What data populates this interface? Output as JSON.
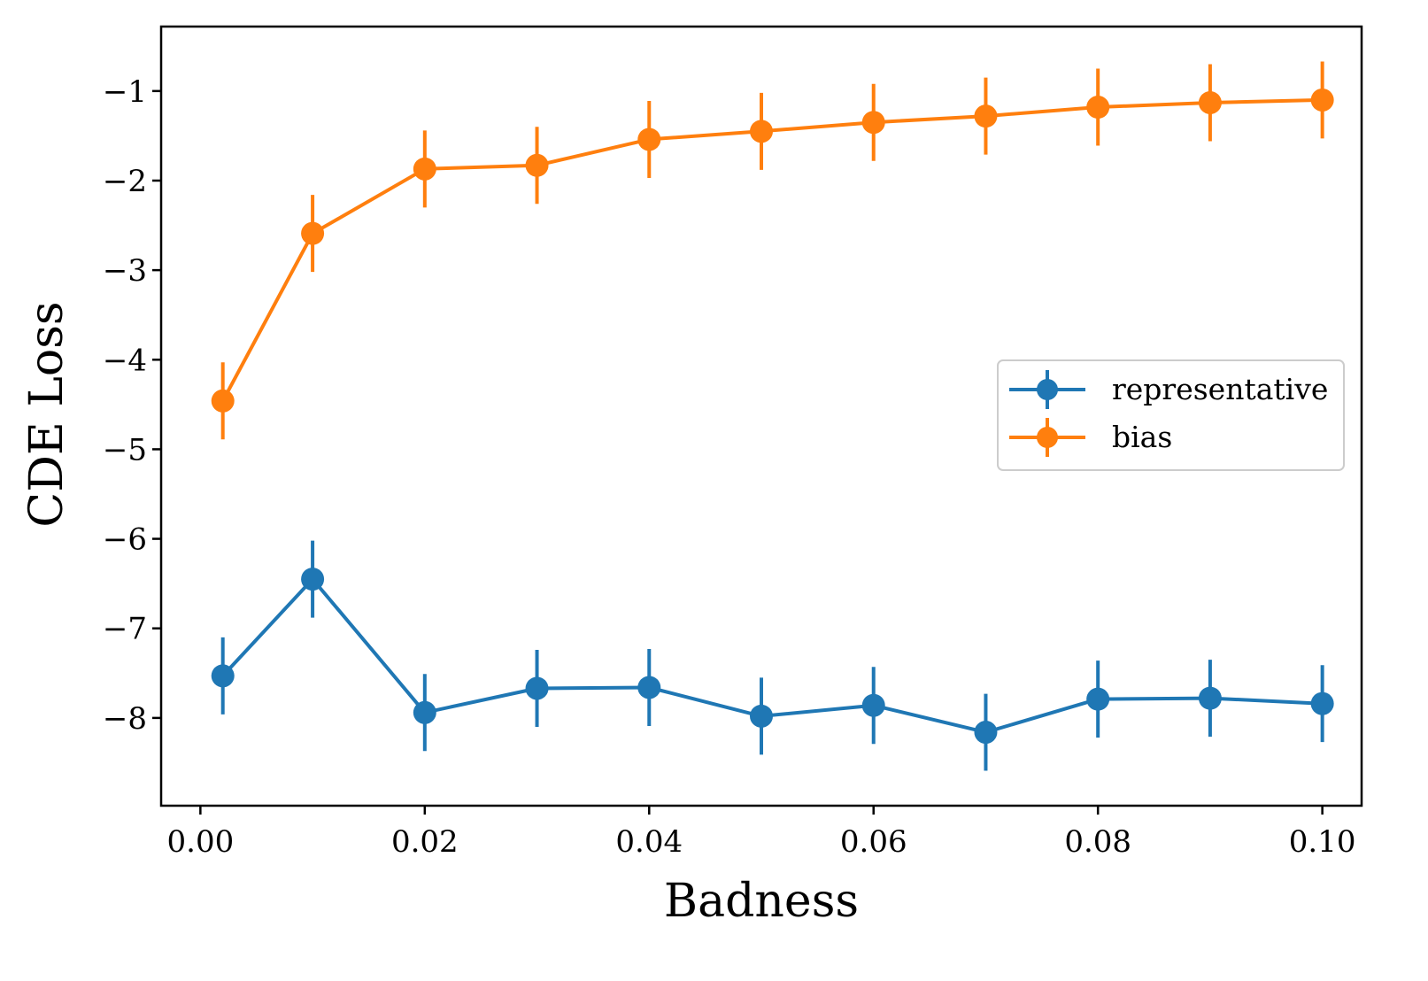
{
  "chart_data": {
    "type": "line",
    "title": "",
    "xlabel": "Badness",
    "ylabel": "CDE Loss",
    "xlim": [
      -0.0035,
      0.1035
    ],
    "ylim": [
      -8.98,
      -0.28
    ],
    "grid": false,
    "legend_position": "center-right",
    "x_ticks": [
      0.0,
      0.02,
      0.04,
      0.06,
      0.08,
      0.1
    ],
    "x_tick_labels": [
      "0.00",
      "0.02",
      "0.04",
      "0.06",
      "0.08",
      "0.10"
    ],
    "y_ticks": [
      -1,
      -2,
      -3,
      -4,
      -5,
      -6,
      -7,
      -8
    ],
    "y_tick_labels": [
      "−1",
      "−2",
      "−3",
      "−4",
      "−5",
      "−6",
      "−7",
      "−8"
    ],
    "x": [
      0.002,
      0.01,
      0.02,
      0.03,
      0.04,
      0.05,
      0.06,
      0.07,
      0.08,
      0.09,
      0.1
    ],
    "series": [
      {
        "name": "representative",
        "color": "#1f77b4",
        "values": [
          -7.53,
          -6.45,
          -7.94,
          -7.67,
          -7.66,
          -7.98,
          -7.86,
          -8.16,
          -7.79,
          -7.78,
          -7.84
        ],
        "errors": [
          0.43,
          0.43,
          0.43,
          0.43,
          0.43,
          0.43,
          0.43,
          0.43,
          0.43,
          0.43,
          0.43
        ]
      },
      {
        "name": "bias",
        "color": "#ff7f0e",
        "values": [
          -4.46,
          -2.59,
          -1.87,
          -1.83,
          -1.54,
          -1.45,
          -1.35,
          -1.28,
          -1.18,
          -1.13,
          -1.1
        ],
        "errors": [
          0.43,
          0.43,
          0.43,
          0.43,
          0.43,
          0.43,
          0.43,
          0.43,
          0.43,
          0.43,
          0.43
        ]
      }
    ]
  }
}
